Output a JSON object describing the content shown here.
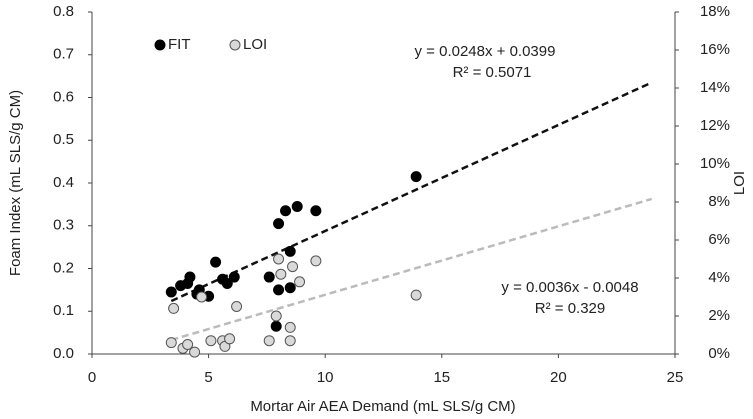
{
  "chart_data": {
    "type": "scatter",
    "x_label": "Mortar Air AEA Demand (mL SLS/g CM)",
    "y_label": "Foam Index (mL SLS/g CM)",
    "y2_label": "LOI",
    "xlim": [
      0,
      25
    ],
    "xticks": [
      0,
      5,
      10,
      15,
      20,
      25
    ],
    "ylim": [
      0,
      0.8
    ],
    "yticks": [
      {
        "value": 0,
        "label": "0.0"
      },
      {
        "value": 0.1,
        "label": "0.1"
      },
      {
        "value": 0.2,
        "label": "0.2"
      },
      {
        "value": 0.3,
        "label": "0.3"
      },
      {
        "value": 0.4,
        "label": "0.4"
      },
      {
        "value": 0.5,
        "label": "0.5"
      },
      {
        "value": 0.6,
        "label": "0.6"
      },
      {
        "value": 0.7,
        "label": "0.7"
      },
      {
        "value": 0.8,
        "label": "0.8"
      }
    ],
    "y2lim": [
      0,
      18
    ],
    "y2ticks": [
      {
        "value": 0,
        "label": "0%"
      },
      {
        "value": 2,
        "label": "2%"
      },
      {
        "value": 4,
        "label": "4%"
      },
      {
        "value": 6,
        "label": "6%"
      },
      {
        "value": 8,
        "label": "8%"
      },
      {
        "value": 10,
        "label": "10%"
      },
      {
        "value": 12,
        "label": "12%"
      },
      {
        "value": 14,
        "label": "14%"
      },
      {
        "value": 16,
        "label": "16%"
      },
      {
        "value": 18,
        "label": "18%"
      }
    ],
    "legend": "top-left",
    "series": [
      {
        "name": "FIT",
        "color": "#000000",
        "edge": "#000000",
        "x": [
          3.4,
          3.8,
          4.1,
          4.2,
          4.5,
          4.6,
          5.0,
          5.3,
          5.6,
          5.8,
          6.1,
          7.6,
          7.9,
          8.0,
          8.0,
          8.3,
          8.5,
          8.5,
          8.8,
          9.6,
          13.9
        ],
        "values": [
          0.145,
          0.16,
          0.165,
          0.18,
          0.14,
          0.15,
          0.135,
          0.215,
          0.175,
          0.165,
          0.18,
          0.18,
          0.065,
          0.15,
          0.305,
          0.335,
          0.24,
          0.155,
          0.345,
          0.335,
          0.415
        ],
        "trendline": {
          "x": [
            3.4,
            24
          ],
          "values": [
            0.124,
            0.635
          ],
          "color": "#111111"
        }
      },
      {
        "name": "LOI",
        "color": "#d9d9d9",
        "edge": "#555555",
        "axis": "y2",
        "x": [
          3.4,
          3.5,
          3.9,
          4.1,
          4.4,
          4.7,
          5.1,
          5.6,
          5.7,
          5.9,
          6.2,
          7.6,
          7.9,
          8.0,
          8.1,
          8.5,
          8.5,
          8.6,
          8.9,
          9.6,
          13.9
        ],
        "values": [
          0.6,
          2.4,
          0.3,
          0.5,
          0.1,
          3.0,
          0.7,
          0.7,
          0.4,
          0.8,
          2.5,
          0.7,
          2.0,
          5.0,
          4.2,
          0.7,
          1.4,
          4.6,
          3.8,
          4.9,
          3.1
        ],
        "trendline": {
          "x": [
            3.4,
            24
          ],
          "values": [
            0.74,
            8.16
          ],
          "color": "#bbbbbb"
        }
      }
    ],
    "annotations": [
      "y = 0.0248x + 0.0399",
      "R² = 0.5071",
      "y = 0.0036x - 0.0048",
      "R² = 0.329"
    ]
  }
}
